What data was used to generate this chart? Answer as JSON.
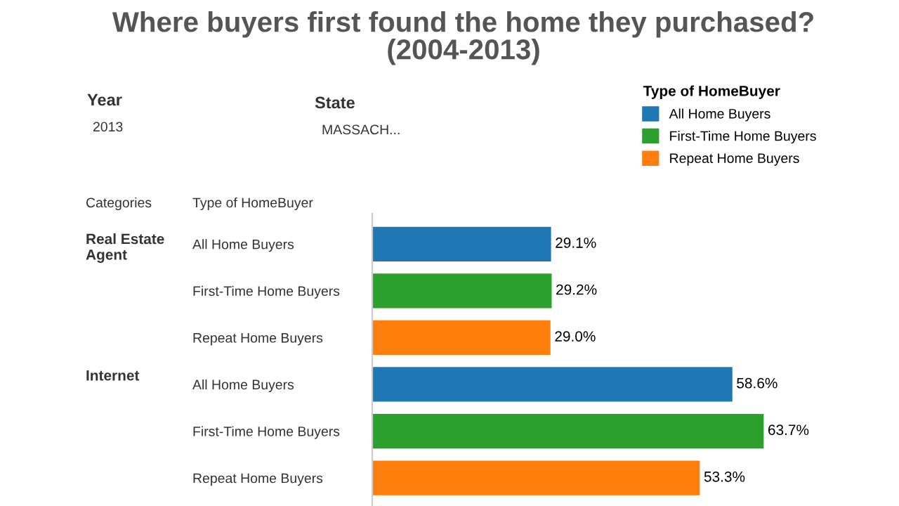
{
  "chart_data": {
    "type": "bar",
    "orientation": "horizontal",
    "title": "Where buyers first found the home they purchased?\n(2004-2013)",
    "legend_title": "Type of HomeBuyer",
    "legend": "top right",
    "categories": [
      "All Home Buyers",
      "First-Time Home Buyers",
      "Repeat Home Buyers",
      "All Home Buyers",
      "First-Time Home Buyers",
      "Repeat Home Buyers"
    ],
    "series": [
      {
        "name": "All Home Buyers",
        "color": "#1f77b4",
        "values": [
          29.1,
          null,
          null,
          58.6,
          null,
          null
        ],
        "value_labels": [
          "29.1%",
          null,
          null,
          "58.6%",
          null,
          null
        ]
      },
      {
        "name": "First-Time Home Buyers",
        "color": "#2ca02c",
        "values": [
          null,
          29.2,
          null,
          null,
          63.7,
          null
        ],
        "value_labels": [
          null,
          "29.2%",
          null,
          null,
          "63.7%",
          null
        ]
      },
      {
        "name": "Repeat Home Buyers",
        "color": "#ff7f0e",
        "values": [
          null,
          null,
          29.0,
          null,
          null,
          53.3
        ],
        "value_labels": [
          null,
          null,
          "29.0%",
          null,
          null,
          "53.3%"
        ]
      }
    ],
    "annotations": [
      "Year",
      "2013",
      "State",
      "MASSACH...",
      "Categories",
      "Type of HomeBuyer",
      "Real Estate Agent",
      "Internet"
    ],
    "grid": false
  }
}
